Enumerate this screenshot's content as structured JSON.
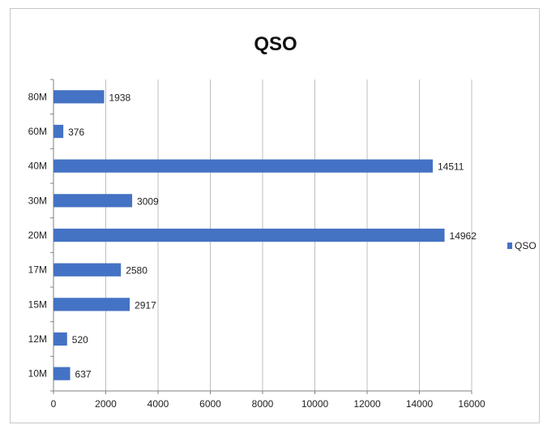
{
  "chart_data": {
    "type": "bar",
    "orientation": "horizontal",
    "title": "QSO",
    "categories": [
      "80M",
      "60M",
      "40M",
      "30M",
      "20M",
      "17M",
      "15M",
      "12M",
      "10M"
    ],
    "series": [
      {
        "name": "QSO",
        "values": [
          1938,
          376,
          14511,
          3009,
          14962,
          2580,
          2917,
          520,
          637
        ]
      }
    ],
    "xlabel": "",
    "ylabel": "",
    "xlim": [
      0,
      16000
    ],
    "x_ticks": [
      0,
      2000,
      4000,
      6000,
      8000,
      10000,
      12000,
      14000,
      16000
    ],
    "grid": true,
    "legend_position": "right",
    "colors": {
      "bar": "#4472C4",
      "grid": "#bfbfbf",
      "axis": "#808080"
    }
  }
}
